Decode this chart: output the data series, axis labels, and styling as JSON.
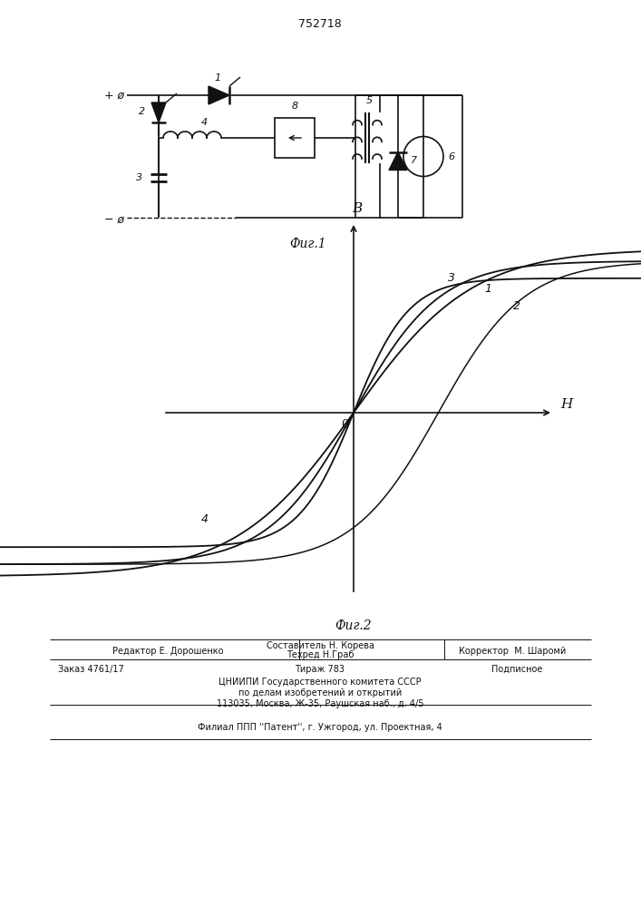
{
  "patent_number": "752718",
  "fig1_label": "Фиг.1",
  "fig2_label": "Фиг.2",
  "bg_color": "#ffffff",
  "line_color": "#111111",
  "axis_label_B": "B",
  "axis_label_H": "H",
  "axis_label_O": "0"
}
